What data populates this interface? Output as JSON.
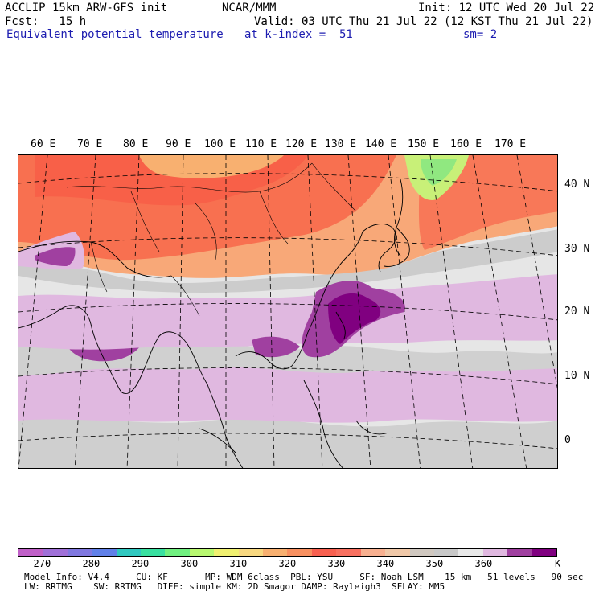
{
  "header": {
    "model": "ACCLIP 15km ARW-GFS init",
    "center": "NCAR/MMM",
    "init": "Init: 12 UTC Wed 20 Jul 22",
    "fcst": "Fcst:   15 h",
    "valid": "Valid: 03 UTC Thu 21 Jul 22 (12 KST Thu 21 Jul 22)",
    "field": "Equivalent potential temperature",
    "level": "at k-index =  51",
    "smooth": "sm= 2"
  },
  "map": {
    "longitude_labels": [
      "60 E",
      "70 E",
      "80 E",
      "90 E",
      "100 E",
      "110 E",
      "120 E",
      "130 E",
      "140 E",
      "150 E",
      "160 E",
      "170 E"
    ],
    "latitude_labels": [
      "40 N",
      "30 N",
      "20 N",
      "10 N",
      "0"
    ]
  },
  "colorbar": {
    "colors": [
      "#c060c8",
      "#a070d8",
      "#8078e0",
      "#6080e8",
      "#30c8c0",
      "#38e0a0",
      "#70f080",
      "#b8f870",
      "#f0f070",
      "#f8d880",
      "#f8b070",
      "#f89060",
      "#f86050",
      "#f87060",
      "#f8b090",
      "#f0c8a8",
      "#d0c8c0",
      "#c8c8c8",
      "#e8e8e8",
      "#e0b8e0",
      "#a040a0",
      "#800080"
    ],
    "tick_labels": [
      "270",
      "280",
      "290",
      "300",
      "310",
      "320",
      "330",
      "340",
      "350",
      "360"
    ],
    "unit": "K"
  },
  "footer": {
    "line1": "Model Info: V4.4     CU: KF       MP: WDM 6class  PBL: YSU     SF: Noah LSM    15 km   51 levels   90 sec",
    "line2": "LW: RRTMG    SW: RRTMG   DIFF: simple KM: 2D Smagor DAMP: Rayleigh3  SFLAY: MM5"
  }
}
